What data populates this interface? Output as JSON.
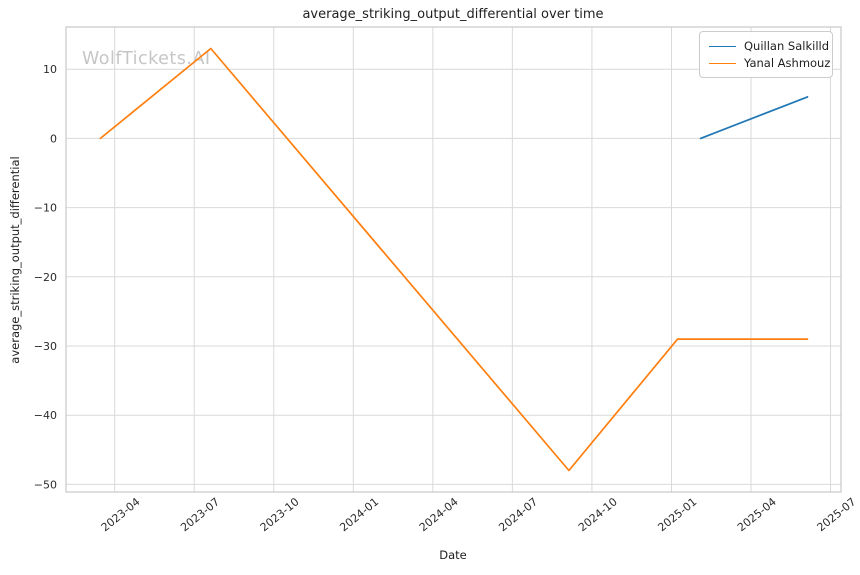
{
  "figure": {
    "watermark": "WolfTickets.AI"
  },
  "chart_data": {
    "type": "line",
    "title": "average_striking_output_differential over time",
    "xlabel": "Date",
    "ylabel": "average_striking_output_differential",
    "x_tick_labels": [
      "2023-04",
      "2023-07",
      "2023-10",
      "2024-01",
      "2024-04",
      "2024-07",
      "2024-10",
      "2025-01",
      "2025-04",
      "2025-07"
    ],
    "y_ticks": [
      10,
      0,
      -10,
      -20,
      -30,
      -40,
      -50
    ],
    "xlim": [
      "2023-02-06",
      "2025-07-13"
    ],
    "ylim": [
      -51.1,
      16.1
    ],
    "grid": true,
    "legend": {
      "position": "upper right"
    },
    "colors": {
      "grid": "#d9d9d9",
      "spine": "#c9c9c9",
      "title_text": "#1f1f1f",
      "tick_text": "#2b2b2b",
      "watermark": "#c6c6c6"
    },
    "series": [
      {
        "name": "Quillan Salkilld",
        "color": "#1f77b4",
        "points": [
          {
            "date": "2025-02-04",
            "value": 0
          },
          {
            "date": "2025-06-05",
            "value": 6
          }
        ]
      },
      {
        "name": "Yanal Ashmouz",
        "color": "#ff7f0e",
        "points": [
          {
            "date": "2023-03-15",
            "value": 0
          },
          {
            "date": "2023-07-20",
            "value": 13
          },
          {
            "date": "2024-09-05",
            "value": -48
          },
          {
            "date": "2025-01-08",
            "value": -29
          },
          {
            "date": "2025-06-05",
            "value": -29
          }
        ]
      }
    ]
  }
}
